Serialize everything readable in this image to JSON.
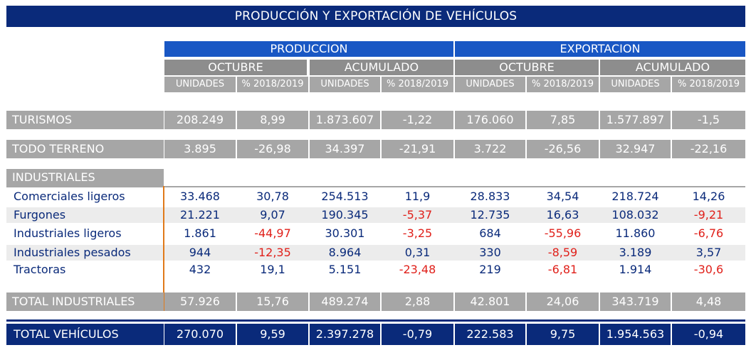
{
  "title": "PRODUCCIÓN Y EXPORTACIÓN DE VEHÍCULOS",
  "groups": [
    "PRODUCCION",
    "EXPORTACION"
  ],
  "subgroups": [
    "OCTUBRE",
    "ACUMULADO",
    "OCTUBRE",
    "ACUMULADO"
  ],
  "columns": [
    "UNIDADES",
    "% 2018/2019",
    "UNIDADES",
    "% 2018/2019",
    "UNIDADES",
    "% 2018/2019",
    "UNIDADES",
    "% 2018/2019"
  ],
  "turismos": {
    "label": "TURISMOS",
    "values": [
      "208.249",
      "8,99",
      "1.873.607",
      "-1,22",
      "176.060",
      "7,85",
      "1.577.897",
      "-1,5"
    ]
  },
  "todo_terreno": {
    "label": "TODO TERRENO",
    "values": [
      "3.895",
      "-26,98",
      "34.397",
      "-21,91",
      "3.722",
      "-26,56",
      "32.947",
      "-22,16"
    ]
  },
  "industriales": {
    "label": "INDUSTRIALES",
    "rows": [
      {
        "label": "Comerciales ligeros",
        "values": [
          "33.468",
          "30,78",
          "254.513",
          "11,9",
          "28.833",
          "34,54",
          "218.724",
          "14,26"
        ]
      },
      {
        "label": "Furgones",
        "values": [
          "21.221",
          "9,07",
          "190.345",
          "-5,37",
          "12.735",
          "16,63",
          "108.032",
          "-9,21"
        ]
      },
      {
        "label": "Industriales ligeros",
        "values": [
          "1.861",
          "-44,97",
          "30.301",
          "-3,25",
          "684",
          "-55,96",
          "11.860",
          "-6,76"
        ]
      },
      {
        "label": "Industriales pesados",
        "values": [
          "944",
          "-12,35",
          "8.964",
          "0,31",
          "330",
          "-8,59",
          "3.189",
          "3,57"
        ]
      },
      {
        "label": "Tractoras",
        "values": [
          "432",
          "19,1",
          "5.151",
          "-23,48",
          "219",
          "-6,81",
          "1.914",
          "-30,6"
        ]
      }
    ]
  },
  "total_industriales": {
    "label": "TOTAL INDUSTRIALES",
    "values": [
      "57.926",
      "15,76",
      "489.274",
      "2,88",
      "42.801",
      "24,06",
      "343.719",
      "4,48"
    ]
  },
  "total_vehiculos": {
    "label": "TOTAL VEHÍCULOS",
    "values": [
      "270.070",
      "9,59",
      "2.397.278",
      "-0,79",
      "222.583",
      "9,75",
      "1.954.563",
      "-0,94"
    ]
  },
  "colors": {
    "navy": "#0a2a7a",
    "blue": "#1957c4",
    "gray": "#a6a6a6",
    "darkgray": "#8d8d8d",
    "negative": "#e0201a",
    "orange": "#e07a1a",
    "stripe": "#ececec"
  }
}
